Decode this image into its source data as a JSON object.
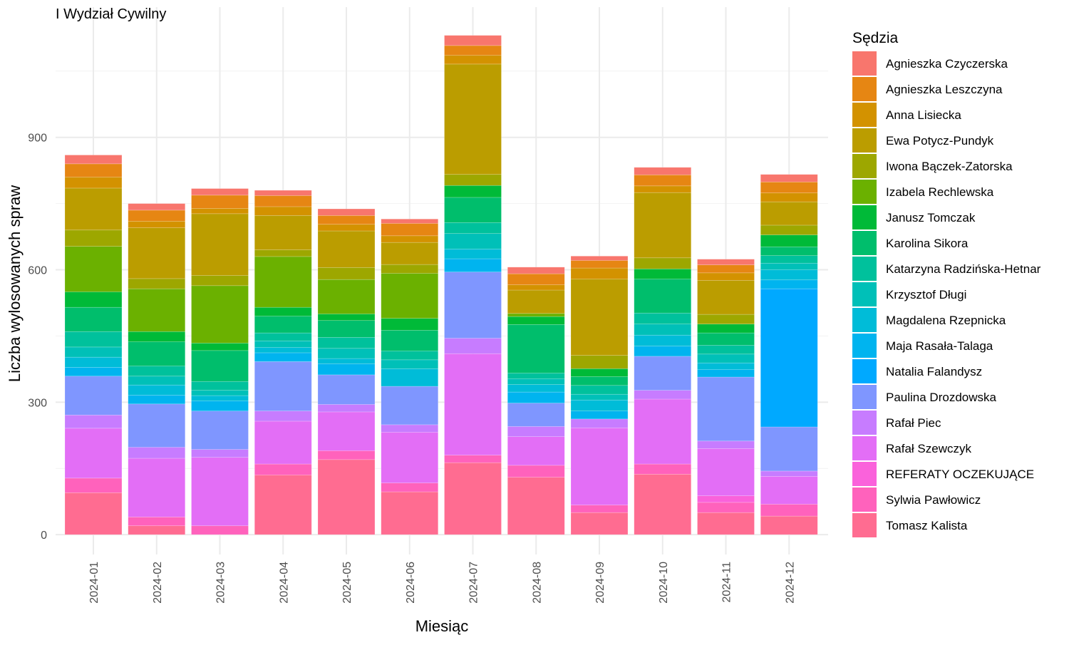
{
  "chart_data": {
    "type": "bar",
    "stacked": true,
    "title": "I Wydział Cywilny",
    "xlabel": "Miesiąc",
    "ylabel": "Liczba wylosowanych spraw",
    "ylim": [
      -45,
      1195
    ],
    "yticks": [
      0,
      300,
      600,
      900
    ],
    "grid": true,
    "legend_position": "right",
    "legend_title": "Sędzia",
    "categories": [
      "2024-01",
      "2024-02",
      "2024-03",
      "2024-04",
      "2024-05",
      "2024-06",
      "2024-07",
      "2024-08",
      "2024-09",
      "2024-10",
      "2024-11",
      "2024-12"
    ],
    "series": [
      {
        "name": "Tomasz Kalista",
        "color": "#FF6C91",
        "values": [
          95,
          20,
          0,
          135,
          170,
          97,
          163,
          130,
          50,
          137,
          50,
          42
        ]
      },
      {
        "name": "Sylwia Pawłowicz",
        "color": "#FF62BC",
        "values": [
          33,
          20,
          20,
          25,
          20,
          20,
          17,
          27,
          17,
          23,
          23,
          27
        ]
      },
      {
        "name": "REFERATY OCZEKUJĄCE",
        "color": "#FA62DB",
        "values": [
          0,
          0,
          0,
          0,
          0,
          0,
          0,
          0,
          0,
          0,
          15,
          0
        ]
      },
      {
        "name": "Rafał Szewczyk",
        "color": "#E36EF6",
        "values": [
          113,
          133,
          155,
          97,
          88,
          115,
          230,
          65,
          175,
          147,
          107,
          63
        ]
      },
      {
        "name": "Rafał Piec",
        "color": "#C77CFF",
        "values": [
          30,
          25,
          18,
          23,
          17,
          17,
          35,
          23,
          20,
          20,
          17,
          12
        ]
      },
      {
        "name": "Paulina Drozdowska",
        "color": "#7F96FF",
        "values": [
          88,
          98,
          87,
          112,
          67,
          87,
          150,
          53,
          0,
          77,
          145,
          100
        ]
      },
      {
        "name": "Natalia Falandysz",
        "color": "#00A9FF",
        "values": [
          0,
          0,
          0,
          0,
          0,
          0,
          0,
          0,
          0,
          0,
          0,
          313
        ]
      },
      {
        "name": "Maja Rasała-Talaga",
        "color": "#00B4EF",
        "values": [
          20,
          20,
          23,
          20,
          25,
          0,
          30,
          25,
          18,
          23,
          17,
          20
        ]
      },
      {
        "name": "Magdalena Rzepnicka",
        "color": "#00BCD8",
        "values": [
          23,
          23,
          12,
          12,
          12,
          40,
          22,
          17,
          25,
          25,
          15,
          23
        ]
      },
      {
        "name": "Krzysztof Długi",
        "color": "#00C0B8",
        "values": [
          23,
          20,
          12,
          15,
          23,
          20,
          35,
          13,
          13,
          25,
          20,
          15
        ]
      },
      {
        "name": "Katarzyna Radzińska-Hetnar",
        "color": "#00C19C",
        "values": [
          35,
          23,
          20,
          18,
          25,
          20,
          25,
          13,
          20,
          25,
          20,
          17
        ]
      },
      {
        "name": "Karolina Sikora",
        "color": "#00BE6C",
        "values": [
          55,
          55,
          70,
          38,
          38,
          47,
          57,
          110,
          20,
          77,
          28,
          20
        ]
      },
      {
        "name": "Janusz Tomczak",
        "color": "#00BA38",
        "values": [
          35,
          23,
          17,
          20,
          15,
          27,
          27,
          18,
          18,
          23,
          20,
          27
        ]
      },
      {
        "name": "Izabela Rechlewska",
        "color": "#6BB100",
        "values": [
          103,
          97,
          130,
          115,
          78,
          102,
          0,
          7,
          0,
          0,
          0,
          0
        ]
      },
      {
        "name": "Iwona Bączek-Zatorska",
        "color": "#9DA700",
        "values": [
          37,
          23,
          23,
          15,
          27,
          20,
          25,
          0,
          30,
          25,
          22,
          22
        ]
      },
      {
        "name": "Ewa Potycz-Pundyk",
        "color": "#BB9D00",
        "values": [
          95,
          115,
          140,
          78,
          83,
          50,
          250,
          53,
          173,
          148,
          77,
          53
        ]
      },
      {
        "name": "Anna Lisiecka",
        "color": "#D39200",
        "values": [
          25,
          15,
          12,
          20,
          15,
          15,
          20,
          12,
          25,
          15,
          17,
          20
        ]
      },
      {
        "name": "Agnieszka Leszczyna",
        "color": "#E68613",
        "values": [
          30,
          25,
          30,
          25,
          20,
          28,
          22,
          25,
          17,
          25,
          18,
          25
        ]
      },
      {
        "name": "Agnieszka Czyczerska",
        "color": "#F8766D",
        "values": [
          20,
          15,
          15,
          12,
          15,
          10,
          23,
          15,
          10,
          17,
          13,
          17
        ]
      }
    ]
  }
}
